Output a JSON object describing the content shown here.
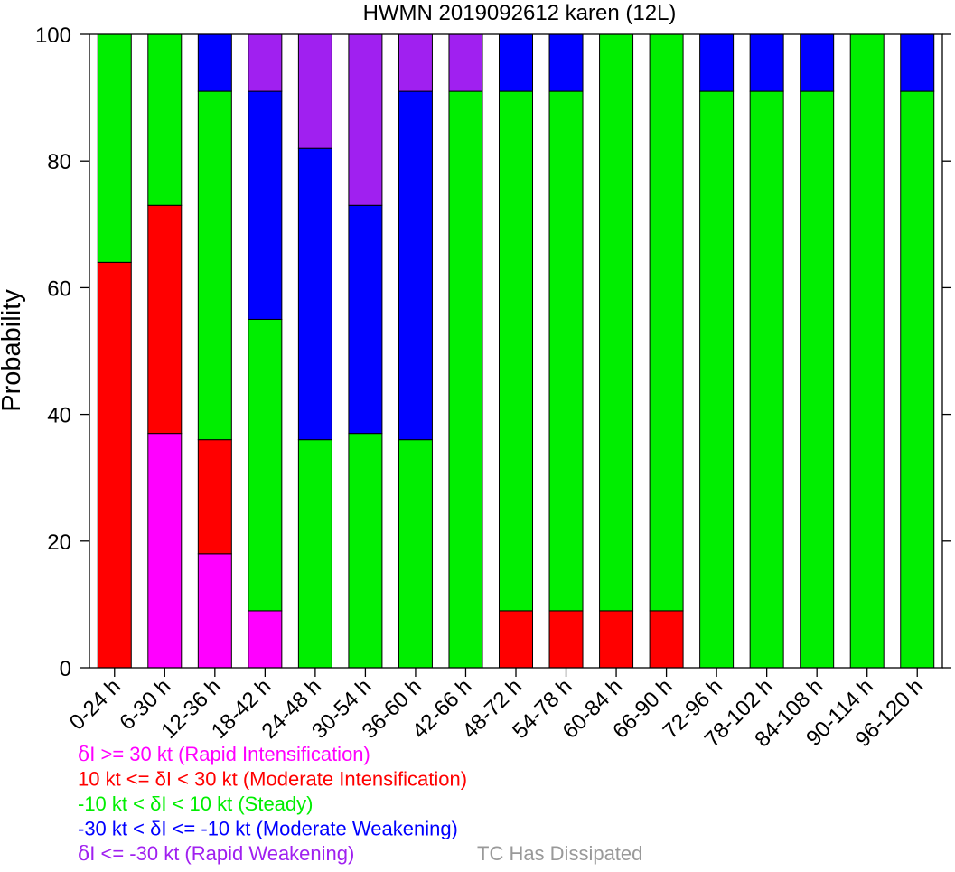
{
  "chart_data": {
    "type": "bar",
    "stacked": true,
    "title": "HWMN 2019092612 karen (12L)",
    "xlabel": "",
    "ylabel": "Probability",
    "ylim": [
      0,
      100
    ],
    "yticks": [
      0,
      20,
      40,
      60,
      80,
      100
    ],
    "categories": [
      "0-24 h",
      "6-30 h",
      "12-36 h",
      "18-42 h",
      "24-48 h",
      "30-54 h",
      "36-60 h",
      "42-66 h",
      "48-72 h",
      "54-78 h",
      "60-84 h",
      "66-90 h",
      "72-96 h",
      "78-102 h",
      "84-108 h",
      "90-114 h",
      "96-120 h"
    ],
    "series": [
      {
        "key": "ri",
        "color": "#ff00ff",
        "values": [
          0,
          37,
          18,
          9,
          0,
          0,
          0,
          0,
          0,
          0,
          0,
          0,
          0,
          0,
          0,
          0,
          0
        ]
      },
      {
        "key": "mi",
        "color": "#ff0000",
        "values": [
          64,
          36,
          18,
          0,
          0,
          0,
          0,
          0,
          9,
          9,
          9,
          9,
          0,
          0,
          0,
          0,
          0
        ]
      },
      {
        "key": "steady",
        "color": "#00ee00",
        "values": [
          36,
          27,
          55,
          46,
          36,
          37,
          36,
          91,
          82,
          82,
          91,
          91,
          91,
          91,
          91,
          100,
          91
        ]
      },
      {
        "key": "mw",
        "color": "#0000ff",
        "values": [
          0,
          0,
          9,
          36,
          46,
          36,
          55,
          0,
          9,
          9,
          0,
          0,
          9,
          9,
          9,
          0,
          9
        ]
      },
      {
        "key": "rw",
        "color": "#a020f0",
        "values": [
          0,
          0,
          0,
          9,
          18,
          27,
          9,
          9,
          0,
          0,
          0,
          0,
          0,
          0,
          0,
          0,
          0
        ]
      }
    ],
    "legend": {
      "placement": "bottom-left",
      "entries": [
        {
          "symbol": "δ",
          "text": "I >= 30 kt (Rapid Intensification)",
          "color": "#ff00ff"
        },
        {
          "symbol": "",
          "text": "10 kt <= δI < 30 kt (Moderate Intensification)",
          "color": "#ff0000"
        },
        {
          "symbol": "",
          "text": "-10 kt < δI < 10 kt (Steady)",
          "color": "#00ee00"
        },
        {
          "symbol": "",
          "text": "-30 kt < δI <= -10 kt (Moderate Weakening)",
          "color": "#0000ff"
        },
        {
          "symbol": "δ",
          "text": "I <= -30 kt (Rapid Weakening)",
          "color": "#a020f0"
        }
      ],
      "dissipated": {
        "text": "TC Has Dissipated",
        "color": "#999999"
      }
    }
  }
}
